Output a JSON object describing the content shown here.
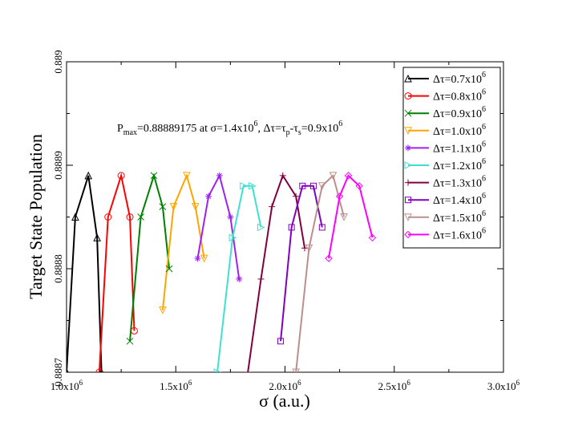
{
  "chart_data": {
    "type": "line",
    "title": "",
    "xlabel": "σ (a.u.)",
    "ylabel": "Target State Population",
    "xlim": [
      1000000,
      3000000
    ],
    "ylim": [
      0.8887,
      0.889
    ],
    "xticks": [
      {
        "value": 1000000,
        "label": "1.0x10",
        "exp": "6"
      },
      {
        "value": 1500000,
        "label": "1.5x10",
        "exp": "6"
      },
      {
        "value": 2000000,
        "label": "2.0x10",
        "exp": "6"
      },
      {
        "value": 2500000,
        "label": "2.5x10",
        "exp": "6"
      },
      {
        "value": 3000000,
        "label": "3.0x10",
        "exp": "6"
      }
    ],
    "yticks": [
      {
        "value": 0.8887,
        "label": "0.8887"
      },
      {
        "value": 0.8888,
        "label": "0.8888"
      },
      {
        "value": 0.8889,
        "label": "0.8889"
      },
      {
        "value": 0.889,
        "label": "0.889"
      }
    ],
    "grid": false,
    "legend_position": "top-right",
    "annotation": {
      "p": "P",
      "max": "max",
      "t1": "=0.88889175 at σ=1.4x10",
      "e1": "6",
      "t2": ", Δτ=τ",
      "p_sub": "p",
      "t3": "-τ",
      "s_sub": "s",
      "t4": "=0.9x10",
      "e2": "6"
    },
    "series": [
      {
        "name": "Δτ=0.7x10",
        "exp": "6",
        "color": "#000000",
        "marker": "triangle-up",
        "x": [
          1000000,
          1040000,
          1100000,
          1140000,
          1160000
        ],
        "y": [
          0.8887,
          0.88885,
          0.88889,
          0.88883,
          0.8887
        ]
      },
      {
        "name": "Δτ=0.8x10",
        "exp": "6",
        "color": "#ff0000",
        "marker": "circle",
        "x": [
          1150000,
          1190000,
          1250000,
          1290000,
          1310000
        ],
        "y": [
          0.8887,
          0.88885,
          0.88889,
          0.88885,
          0.88874
        ]
      },
      {
        "name": "Δτ=0.9x10",
        "exp": "6",
        "color": "#008000",
        "marker": "x",
        "x": [
          1290000,
          1340000,
          1400000,
          1440000,
          1470000
        ],
        "y": [
          0.88873,
          0.88885,
          0.88889,
          0.88886,
          0.8888
        ]
      },
      {
        "name": "Δτ=1.0x10",
        "exp": "6",
        "color": "#ffa500",
        "marker": "triangle-down",
        "x": [
          1440000,
          1490000,
          1550000,
          1590000,
          1630000
        ],
        "y": [
          0.88876,
          0.88886,
          0.88889,
          0.88886,
          0.88881
        ]
      },
      {
        "name": "Δτ=1.1x10",
        "exp": "6",
        "color": "#a020f0",
        "marker": "asterisk",
        "x": [
          1600000,
          1650000,
          1700000,
          1750000,
          1790000
        ],
        "y": [
          0.88881,
          0.88887,
          0.88889,
          0.88885,
          0.88879
        ]
      },
      {
        "name": "Δτ=1.2x10",
        "exp": "6",
        "color": "#40e0d0",
        "marker": "triangle-right",
        "x": [
          1690000,
          1760000,
          1810000,
          1850000,
          1890000
        ],
        "y": [
          0.8887,
          0.88883,
          0.88888,
          0.88888,
          0.88884
        ]
      },
      {
        "name": "Δτ=1.3x10",
        "exp": "6",
        "color": "#800040",
        "marker": "plus",
        "x": [
          1830000,
          1890000,
          1940000,
          1990000,
          2050000,
          2090000
        ],
        "y": [
          0.8887,
          0.88879,
          0.88886,
          0.88889,
          0.88887,
          0.88882
        ]
      },
      {
        "name": "Δτ=1.4x10",
        "exp": "6",
        "color": "#8000c0",
        "marker": "square",
        "x": [
          1980000,
          2030000,
          2080000,
          2130000,
          2170000
        ],
        "y": [
          0.88873,
          0.88884,
          0.88888,
          0.88888,
          0.88884
        ]
      },
      {
        "name": "Δτ=1.5x10",
        "exp": "6",
        "color": "#bc8f8f",
        "marker": "triangle-down",
        "x": [
          2050000,
          2110000,
          2170000,
          2220000,
          2270000
        ],
        "y": [
          0.8887,
          0.88882,
          0.88888,
          0.88889,
          0.88885
        ]
      },
      {
        "name": "Δτ=1.6x10",
        "exp": "6",
        "color": "#ff00ff",
        "marker": "diamond",
        "x": [
          2200000,
          2250000,
          2290000,
          2340000,
          2400000
        ],
        "y": [
          0.88881,
          0.88887,
          0.88889,
          0.88888,
          0.88883
        ]
      }
    ]
  }
}
